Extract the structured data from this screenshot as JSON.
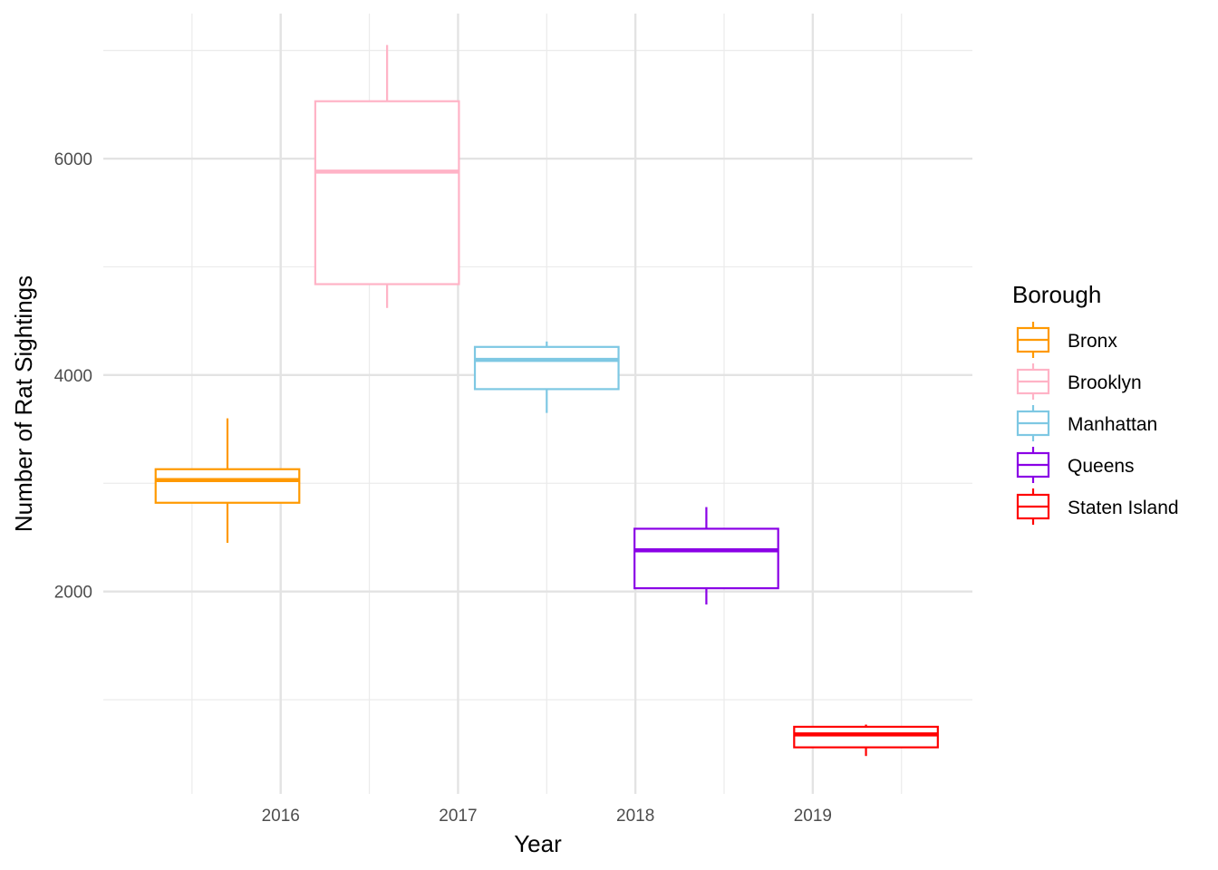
{
  "chart_data": {
    "type": "boxplot",
    "title": "",
    "xlabel": "Year",
    "ylabel": "Number of Rat Sightings",
    "x_categories": [
      "2016",
      "2017",
      "2018",
      "2019"
    ],
    "y_ticks": [
      2000,
      4000,
      6000
    ],
    "ylim": [
      130,
      7340
    ],
    "grid": true,
    "legend": {
      "title": "Borough",
      "position": "right",
      "entries": [
        "Bronx",
        "Brooklyn",
        "Manhattan",
        "Queens",
        "Staten Island"
      ]
    },
    "series": [
      {
        "name": "Bronx",
        "color": "#FF9900",
        "x_position": 2015.7,
        "stats": {
          "min": 2450,
          "q1": 2820,
          "median": 3030,
          "q3": 3130,
          "max": 3600
        }
      },
      {
        "name": "Brooklyn",
        "color": "#FFB3C6",
        "x_position": 2016.6,
        "stats": {
          "min": 4620,
          "q1": 4840,
          "median": 5880,
          "q3": 6530,
          "max": 7050
        }
      },
      {
        "name": "Manhattan",
        "color": "#7EC8E3",
        "x_position": 2017.5,
        "stats": {
          "min": 3650,
          "q1": 3870,
          "median": 4140,
          "q3": 4260,
          "max": 4310
        }
      },
      {
        "name": "Queens",
        "color": "#8A00E6",
        "x_position": 2018.4,
        "stats": {
          "min": 1880,
          "q1": 2030,
          "median": 2380,
          "q3": 2580,
          "max": 2780
        }
      },
      {
        "name": "Staten Island",
        "color": "#FF0000",
        "x_position": 2019.3,
        "stats": {
          "min": 480,
          "q1": 560,
          "median": 680,
          "q3": 750,
          "max": 770
        }
      }
    ]
  }
}
